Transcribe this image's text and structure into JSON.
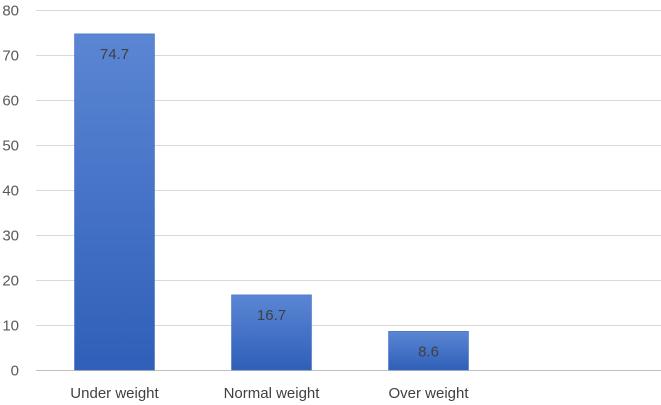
{
  "chart_data": {
    "type": "bar",
    "categories": [
      "Under weight",
      "Normal weight",
      "Over weight"
    ],
    "values": [
      74.7,
      16.7,
      8.6
    ],
    "data_labels": [
      "74.7",
      "16.7",
      "8.6"
    ],
    "title": "",
    "xlabel": "",
    "ylabel": "",
    "ylim": [
      0,
      80
    ],
    "y_ticks": [
      0,
      10,
      20,
      30,
      40,
      50,
      60,
      70,
      80
    ],
    "y_tick_labels": [
      "0",
      "10",
      "20",
      "30",
      "40",
      "50",
      "60",
      "70",
      "80"
    ],
    "grid": true,
    "legend": "none",
    "colors": {
      "bar_top": "#5b86d4",
      "bar_bottom": "#2f5fb8",
      "bar_edge": "#3a66bd"
    }
  }
}
